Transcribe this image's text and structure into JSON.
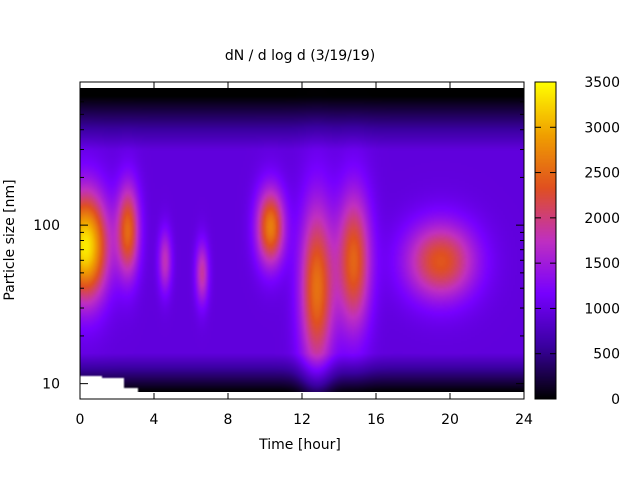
{
  "chart_data": {
    "type": "heatmap",
    "title": "dN / d log d (3/19/19)",
    "xlabel": "Time [hour]",
    "ylabel": "Particle size [nm]",
    "xlim": [
      0,
      24
    ],
    "ylim": [
      8,
      800
    ],
    "yscale": "log",
    "x_ticks": [
      0,
      4,
      8,
      12,
      16,
      20,
      24
    ],
    "y_ticks": [
      10,
      100
    ],
    "colorbar": {
      "range": [
        0,
        3500
      ],
      "ticks": [
        0,
        500,
        1000,
        1500,
        2000,
        2500,
        3000,
        3500
      ],
      "palette": [
        "#000000",
        "#3a00a0",
        "#7700ff",
        "#c030c0",
        "#e05020",
        "#f0a000",
        "#ffff00"
      ]
    },
    "grid": false,
    "features": [
      {
        "x": 0.3,
        "size_nm": 75,
        "intensity": 3000,
        "width_h": 1.2,
        "height_dec": 0.35
      },
      {
        "x": 2.6,
        "size_nm": 95,
        "intensity": 2100,
        "width_h": 0.6,
        "height_dec": 0.3
      },
      {
        "x": 4.6,
        "size_nm": 60,
        "intensity": 1400,
        "width_h": 0.35,
        "height_dec": 0.2
      },
      {
        "x": 6.6,
        "size_nm": 50,
        "intensity": 1500,
        "width_h": 0.35,
        "height_dec": 0.2
      },
      {
        "x": 10.3,
        "size_nm": 100,
        "intensity": 2300,
        "width_h": 0.75,
        "height_dec": 0.25
      },
      {
        "x": 12.8,
        "size_nm": 40,
        "intensity": 2200,
        "width_h": 0.9,
        "height_dec": 0.55
      },
      {
        "x": 14.8,
        "size_nm": 60,
        "intensity": 2100,
        "width_h": 0.9,
        "height_dec": 0.45
      },
      {
        "x": 19.5,
        "size_nm": 60,
        "intensity": 2000,
        "width_h": 1.9,
        "height_dec": 0.25
      }
    ],
    "background_level": 950
  }
}
